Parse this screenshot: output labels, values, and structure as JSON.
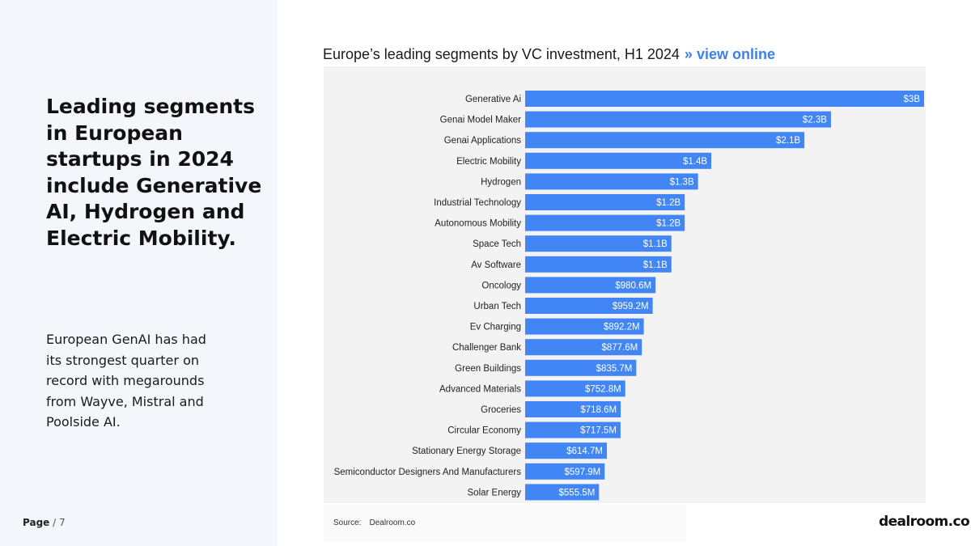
{
  "left": {
    "headline": "Leading segments in European startups in 2024 include Generative AI, Hydrogen and Electric Mobility.",
    "body": "European GenAI has had its strongest quarter on record with megarounds from Wayve, Mistral and Poolside AI.",
    "page_label": "Page",
    "page_sep": " / ",
    "page_number": "7"
  },
  "chart_header": {
    "title": "Europe’s leading segments by VC investment, H1 2024",
    "link_marker": "»",
    "link_text": "view online"
  },
  "footer": {
    "source_label": "Source:",
    "source_value": "Dealroom.co",
    "logo": "dealroom.co"
  },
  "colors": {
    "bar": "#4285f4",
    "link": "#3d7ff0",
    "panel_bg": "#f4f6fb",
    "chart_bg": "#f3f3f4"
  },
  "chart_data": {
    "type": "bar",
    "orientation": "horizontal",
    "title": "Europe’s leading segments by VC investment, H1 2024",
    "categories": [
      "Generative Ai",
      "Genai Model Maker",
      "Genai Applications",
      "Electric Mobility",
      "Hydrogen",
      "Industrial Technology",
      "Autonomous Mobility",
      "Space Tech",
      "Av Software",
      "Oncology",
      "Urban Tech",
      "Ev Charging",
      "Challenger Bank",
      "Green Buildings",
      "Advanced Materials",
      "Groceries",
      "Circular Economy",
      "Stationary Energy Storage",
      "Semiconductor Designers And Manufacturers",
      "Solar Energy"
    ],
    "values": [
      3.0,
      2.3,
      2.1,
      1.4,
      1.3,
      1.2,
      1.2,
      1.1,
      1.1,
      0.9806,
      0.9592,
      0.8922,
      0.8776,
      0.8357,
      0.7528,
      0.7186,
      0.7175,
      0.6147,
      0.5979,
      0.5555
    ],
    "value_labels": [
      "$3B",
      "$2.3B",
      "$2.1B",
      "$1.4B",
      "$1.3B",
      "$1.2B",
      "$1.2B",
      "$1.1B",
      "$1.1B",
      "$980.6M",
      "$959.2M",
      "$892.2M",
      "$877.6M",
      "$835.7M",
      "$752.8M",
      "$718.6M",
      "$717.5M",
      "$614.7M",
      "$597.9M",
      "$555.5M"
    ],
    "unit": "USD billions",
    "xlim": [
      0,
      3.0
    ],
    "grid": false,
    "legend": "none"
  }
}
